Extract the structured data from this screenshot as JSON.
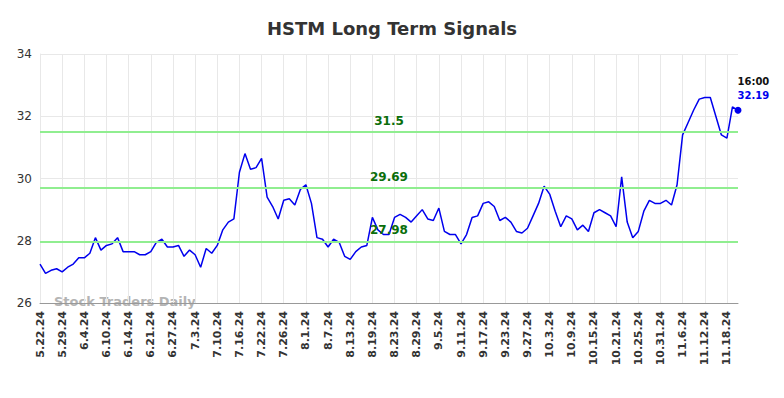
{
  "chart_data": {
    "type": "line",
    "title": "HSTM Long Term Signals",
    "categories": [
      "5.22.24",
      null,
      null,
      null,
      "5.29.24",
      null,
      null,
      null,
      "6.4.24",
      null,
      null,
      null,
      "6.10.24",
      null,
      null,
      null,
      "6.14.24",
      null,
      null,
      null,
      "6.21.24",
      null,
      null,
      null,
      "6.27.24",
      null,
      null,
      null,
      "7.3.24",
      null,
      null,
      null,
      "7.10.24",
      null,
      null,
      null,
      "7.16.24",
      null,
      null,
      null,
      "7.22.24",
      null,
      null,
      null,
      "7.26.24",
      null,
      null,
      null,
      "8.1.24",
      null,
      null,
      null,
      "8.7.24",
      null,
      null,
      null,
      "8.13.24",
      null,
      null,
      null,
      "8.19.24",
      null,
      null,
      null,
      "8.23.24",
      null,
      null,
      null,
      "8.29.24",
      null,
      null,
      null,
      "9.5.24",
      null,
      null,
      null,
      "9.11.24",
      null,
      null,
      null,
      "9.17.24",
      null,
      null,
      null,
      "9.23.24",
      null,
      null,
      null,
      "9.27.24",
      null,
      null,
      null,
      "10.3.24",
      null,
      null,
      null,
      "10.9.24",
      null,
      null,
      null,
      "10.15.24",
      null,
      null,
      null,
      "10.21.24",
      null,
      null,
      null,
      "10.25.24",
      null,
      null,
      null,
      "10.31.24",
      null,
      null,
      null,
      "11.6.24",
      null,
      null,
      null,
      "11.12.24",
      null,
      null,
      null,
      "11.18.24",
      null,
      null
    ],
    "values": [
      27.25,
      26.95,
      27.05,
      27.1,
      27.0,
      27.15,
      27.25,
      27.45,
      27.45,
      27.6,
      28.1,
      27.7,
      27.85,
      27.9,
      28.1,
      27.65,
      27.65,
      27.65,
      27.55,
      27.55,
      27.65,
      27.95,
      28.05,
      27.8,
      27.8,
      27.85,
      27.5,
      27.7,
      27.55,
      27.15,
      27.75,
      27.6,
      27.85,
      28.35,
      28.6,
      28.7,
      30.2,
      30.8,
      30.3,
      30.35,
      30.65,
      29.4,
      29.1,
      28.7,
      29.3,
      29.35,
      29.15,
      29.65,
      29.8,
      29.2,
      28.1,
      28.05,
      27.8,
      28.05,
      27.95,
      27.5,
      27.4,
      27.65,
      27.8,
      27.85,
      28.75,
      28.35,
      28.2,
      28.2,
      28.75,
      28.85,
      28.75,
      28.6,
      28.8,
      29.0,
      28.7,
      28.65,
      29.05,
      28.3,
      28.2,
      28.2,
      27.9,
      28.2,
      28.75,
      28.8,
      29.2,
      29.25,
      29.1,
      28.65,
      28.75,
      28.6,
      28.3,
      28.25,
      28.4,
      28.8,
      29.2,
      29.75,
      29.5,
      28.95,
      28.45,
      28.8,
      28.7,
      28.35,
      28.5,
      28.3,
      28.9,
      29.0,
      28.9,
      28.8,
      28.45,
      30.05,
      28.6,
      28.1,
      28.3,
      28.95,
      29.3,
      29.2,
      29.2,
      29.3,
      29.15,
      29.8,
      31.4,
      31.8,
      32.2,
      32.55,
      32.6,
      32.6,
      32.0,
      31.4,
      31.3,
      32.3,
      32.19
    ],
    "color": "#0000ee",
    "ylim": [
      26,
      34
    ],
    "yticks": [
      26,
      28,
      30,
      32,
      34
    ],
    "grid": true,
    "reference_lines": [
      {
        "value": 31.5,
        "label": "31.5"
      },
      {
        "value": 29.69,
        "label": "29.69"
      },
      {
        "value": 27.98,
        "label": "27.98"
      }
    ],
    "last_point": {
      "time": "16:00",
      "value_label": "32.19"
    },
    "watermark": "Stock Traders Daily"
  }
}
